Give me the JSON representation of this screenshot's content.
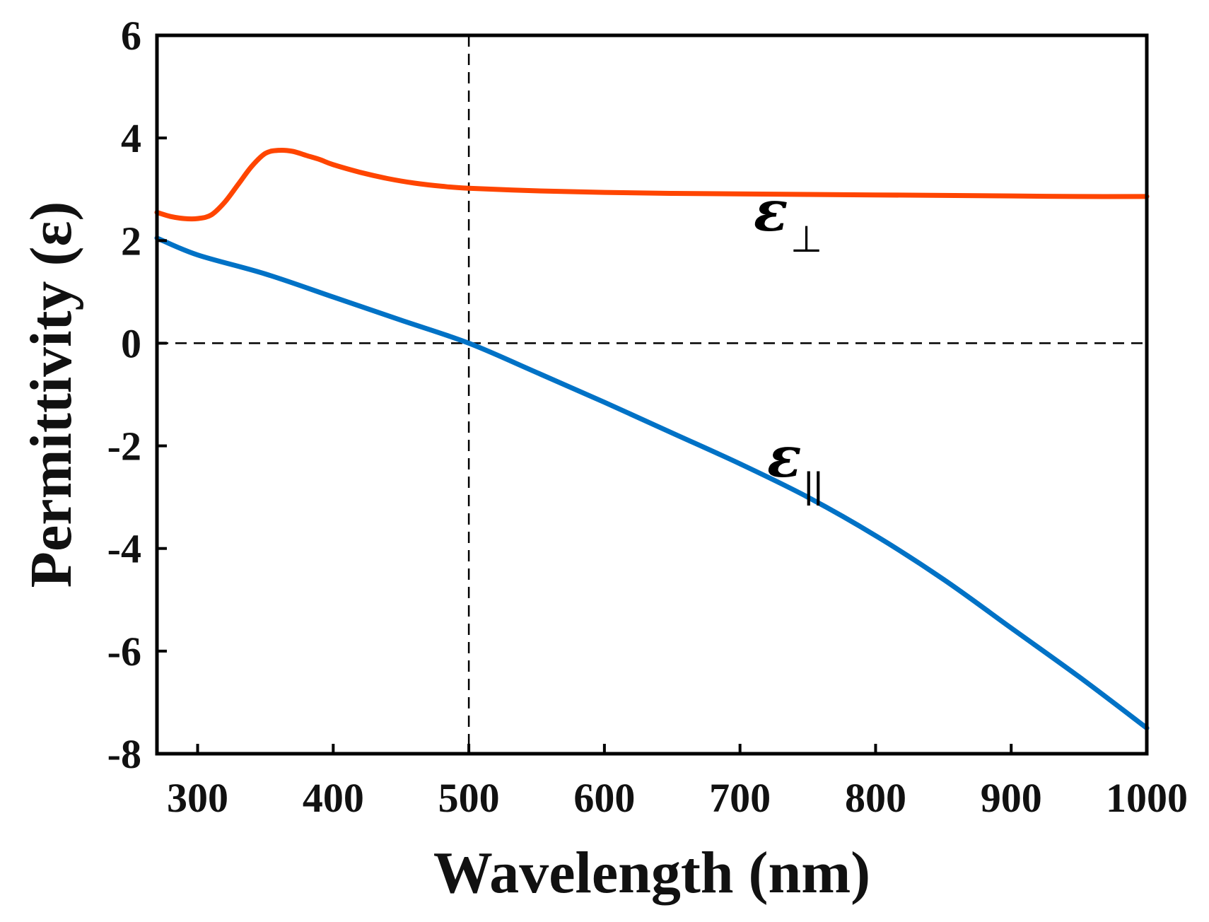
{
  "chart_data": {
    "type": "line",
    "xlabel": "Wavelength (nm)",
    "ylabel": "Permittivity (ε)",
    "xlim": [
      270,
      1000
    ],
    "ylim": [
      -8,
      6
    ],
    "xticks": [
      300,
      400,
      500,
      600,
      700,
      800,
      900,
      1000
    ],
    "yticks": [
      6,
      4,
      2,
      0,
      -2,
      -4,
      -6,
      -8
    ],
    "reference_lines": {
      "x": 500,
      "y": 0,
      "style": "dashed"
    },
    "series": [
      {
        "name": "ε⊥",
        "name_main": "ε",
        "name_sub": "⊥",
        "color": "#ff4500",
        "x": [
          270,
          280,
          290,
          300,
          310,
          320,
          330,
          340,
          350,
          360,
          370,
          380,
          390,
          400,
          420,
          440,
          460,
          480,
          500,
          550,
          600,
          650,
          700,
          750,
          800,
          850,
          900,
          950,
          1000
        ],
        "y": [
          2.55,
          2.47,
          2.43,
          2.43,
          2.5,
          2.75,
          3.1,
          3.45,
          3.7,
          3.76,
          3.74,
          3.66,
          3.58,
          3.48,
          3.33,
          3.21,
          3.12,
          3.06,
          3.02,
          2.97,
          2.94,
          2.92,
          2.91,
          2.9,
          2.89,
          2.88,
          2.87,
          2.86,
          2.86
        ]
      },
      {
        "name": "ε||",
        "name_main": "ε",
        "name_sub": "||",
        "color": "#0072c6",
        "x": [
          270,
          300,
          350,
          400,
          450,
          500,
          550,
          600,
          650,
          700,
          750,
          800,
          850,
          900,
          950,
          1000
        ],
        "y": [
          2.05,
          1.72,
          1.35,
          0.9,
          0.45,
          0.0,
          -0.57,
          -1.15,
          -1.75,
          -2.35,
          -3.0,
          -3.75,
          -4.6,
          -5.55,
          -6.5,
          -7.5
        ]
      }
    ],
    "annotations": [
      {
        "series": 0,
        "x": 710,
        "y": 2.2
      },
      {
        "series": 1,
        "x": 720,
        "y": -2.6
      }
    ]
  }
}
